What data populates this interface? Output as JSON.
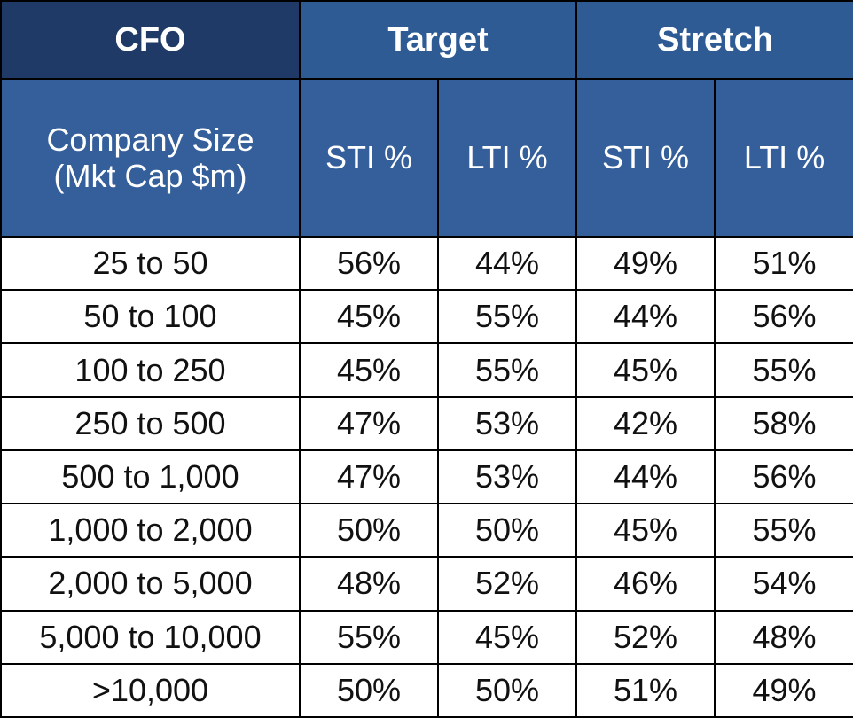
{
  "table": {
    "header": {
      "corner": "CFO",
      "group_target": "Target",
      "group_stretch": "Stretch",
      "size_line1": "Company Size",
      "size_line2": "(Mkt Cap $m)",
      "target_sti": "STI %",
      "target_lti": "LTI %",
      "stretch_sti": "STI %",
      "stretch_lti": "LTI %"
    },
    "rows": [
      {
        "size": "25 to 50",
        "t_sti": "56%",
        "t_lti": "44%",
        "s_sti": "49%",
        "s_lti": "51%"
      },
      {
        "size": "50 to 100",
        "t_sti": "45%",
        "t_lti": "55%",
        "s_sti": "44%",
        "s_lti": "56%"
      },
      {
        "size": "100 to 250",
        "t_sti": "45%",
        "t_lti": "55%",
        "s_sti": "45%",
        "s_lti": "55%"
      },
      {
        "size": "250 to 500",
        "t_sti": "47%",
        "t_lti": "53%",
        "s_sti": "42%",
        "s_lti": "58%"
      },
      {
        "size": "500 to 1,000",
        "t_sti": "47%",
        "t_lti": "53%",
        "s_sti": "44%",
        "s_lti": "56%"
      },
      {
        "size": "1,000 to 2,000",
        "t_sti": "50%",
        "t_lti": "50%",
        "s_sti": "45%",
        "s_lti": "55%"
      },
      {
        "size": "2,000 to 5,000",
        "t_sti": "48%",
        "t_lti": "52%",
        "s_sti": "46%",
        "s_lti": "54%"
      },
      {
        "size": "5,000 to 10,000",
        "t_sti": "55%",
        "t_lti": "45%",
        "s_sti": "52%",
        "s_lti": "48%"
      },
      {
        "size": ">10,000",
        "t_sti": "50%",
        "t_lti": "50%",
        "s_sti": "51%",
        "s_lti": "49%"
      }
    ]
  },
  "colors": {
    "header_dark": "#1f3a66",
    "header_mid": "#2f5b95",
    "header_sub": "#345f9b",
    "grid": "#000000"
  }
}
